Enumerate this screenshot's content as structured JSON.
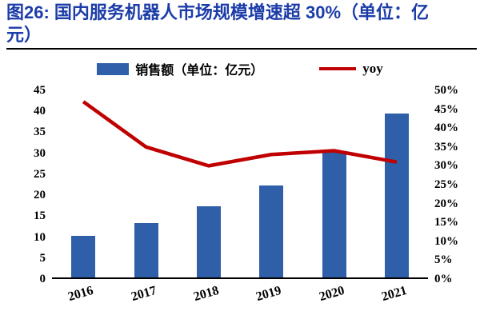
{
  "header": {
    "title_line1": "图26:  国内服务机器人市场规模增速超 30%（单位：亿",
    "title_line2": "元）"
  },
  "colors": {
    "title": "#1c3ca8",
    "bar": "#2e5fa8",
    "line": "#c00000",
    "axis": "#000000"
  },
  "chart_data": {
    "type": "bar",
    "subtype": "bar+line combo",
    "title": "国内服务机器人市场规模增速超 30%（单位：亿元）",
    "categories": [
      "2016",
      "2017",
      "2018",
      "2019",
      "2020",
      "2021"
    ],
    "series": [
      {
        "name": "销售额（单位：亿元）",
        "type": "bar",
        "axis": "left",
        "values": [
          10,
          13,
          17,
          22,
          30,
          39
        ]
      },
      {
        "name": "yoy",
        "type": "line",
        "axis": "right",
        "values": [
          47,
          35,
          30,
          33,
          34,
          31
        ]
      }
    ],
    "left_axis": {
      "min": 0,
      "max": 45,
      "step": 5,
      "suffix": ""
    },
    "right_axis": {
      "min": 0,
      "max": 50,
      "step": 5,
      "suffix": "%"
    },
    "legend_position": "top",
    "grid": false
  }
}
